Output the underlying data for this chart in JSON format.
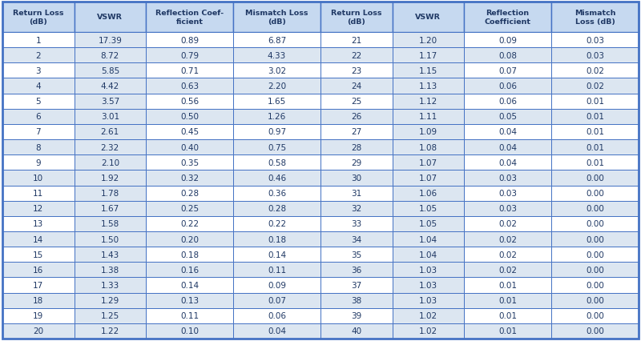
{
  "col_headers_left": [
    "Return Loss\n(dB)",
    "VSWR",
    "Reflection Coef-\nficient",
    "Mismatch Loss\n(dB)"
  ],
  "col_headers_right": [
    "Return Loss\n(dB)",
    "VSWR",
    "Reflection\nCoefficient",
    "Mismatch\nLoss (dB)"
  ],
  "rows_left": [
    [
      "1",
      "17.39",
      "0.89",
      "6.87"
    ],
    [
      "2",
      "8.72",
      "0.79",
      "4.33"
    ],
    [
      "3",
      "5.85",
      "0.71",
      "3.02"
    ],
    [
      "4",
      "4.42",
      "0.63",
      "2.20"
    ],
    [
      "5",
      "3.57",
      "0.56",
      "1.65"
    ],
    [
      "6",
      "3.01",
      "0.50",
      "1.26"
    ],
    [
      "7",
      "2.61",
      "0.45",
      "0.97"
    ],
    [
      "8",
      "2.32",
      "0.40",
      "0.75"
    ],
    [
      "9",
      "2.10",
      "0.35",
      "0.58"
    ],
    [
      "10",
      "1.92",
      "0.32",
      "0.46"
    ],
    [
      "11",
      "1.78",
      "0.28",
      "0.36"
    ],
    [
      "12",
      "1.67",
      "0.25",
      "0.28"
    ],
    [
      "13",
      "1.58",
      "0.22",
      "0.22"
    ],
    [
      "14",
      "1.50",
      "0.20",
      "0.18"
    ],
    [
      "15",
      "1.43",
      "0.18",
      "0.14"
    ],
    [
      "16",
      "1.38",
      "0.16",
      "0.11"
    ],
    [
      "17",
      "1.33",
      "0.14",
      "0.09"
    ],
    [
      "18",
      "1.29",
      "0.13",
      "0.07"
    ],
    [
      "19",
      "1.25",
      "0.11",
      "0.06"
    ],
    [
      "20",
      "1.22",
      "0.10",
      "0.04"
    ]
  ],
  "rows_right": [
    [
      "21",
      "1.20",
      "0.09",
      "0.03"
    ],
    [
      "22",
      "1.17",
      "0.08",
      "0.03"
    ],
    [
      "23",
      "1.15",
      "0.07",
      "0.02"
    ],
    [
      "24",
      "1.13",
      "0.06",
      "0.02"
    ],
    [
      "25",
      "1.12",
      "0.06",
      "0.01"
    ],
    [
      "26",
      "1.11",
      "0.05",
      "0.01"
    ],
    [
      "27",
      "1.09",
      "0.04",
      "0.01"
    ],
    [
      "28",
      "1.08",
      "0.04",
      "0.01"
    ],
    [
      "29",
      "1.07",
      "0.04",
      "0.01"
    ],
    [
      "30",
      "1.07",
      "0.03",
      "0.00"
    ],
    [
      "31",
      "1.06",
      "0.03",
      "0.00"
    ],
    [
      "32",
      "1.05",
      "0.03",
      "0.00"
    ],
    [
      "33",
      "1.05",
      "0.02",
      "0.00"
    ],
    [
      "34",
      "1.04",
      "0.02",
      "0.00"
    ],
    [
      "35",
      "1.04",
      "0.02",
      "0.00"
    ],
    [
      "36",
      "1.03",
      "0.02",
      "0.00"
    ],
    [
      "37",
      "1.03",
      "0.01",
      "0.00"
    ],
    [
      "38",
      "1.03",
      "0.01",
      "0.00"
    ],
    [
      "39",
      "1.02",
      "0.01",
      "0.00"
    ],
    [
      "40",
      "1.02",
      "0.01",
      "0.00"
    ]
  ],
  "header_bg": "#c6d9f0",
  "row_bg_white": "#ffffff",
  "row_bg_blue": "#dce6f1",
  "border_outer": "#4472c4",
  "border_inner": "#4472c4",
  "header_text_color": "#1f3864",
  "data_text_color": "#1f3864",
  "header_font_size": 6.8,
  "data_font_size": 7.5,
  "fig_width": 8.0,
  "fig_height": 4.27,
  "dpi": 100
}
